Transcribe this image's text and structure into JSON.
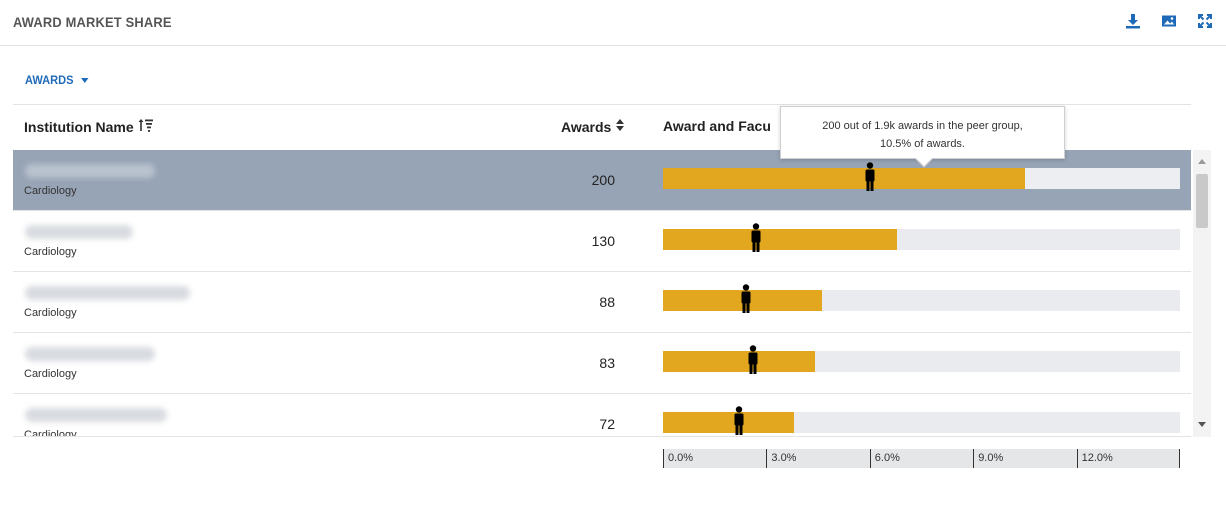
{
  "header": {
    "title": "AWARD MARKET SHARE",
    "icons": [
      "download-icon",
      "image-icon",
      "expand-icon"
    ]
  },
  "selector": {
    "label": "AWARDS"
  },
  "columns": {
    "institution": "Institution Name",
    "awards": "Awards",
    "bar": "Award and Facu"
  },
  "tooltip": {
    "line1": "200 out of 1.9k awards in the peer group,",
    "line2": "10.5% of awards."
  },
  "rows": [
    {
      "specialty": "Cardiology",
      "awards": "200",
      "award_share_pct": 10.5,
      "faculty_marker_pct": 6.0,
      "selected": true
    },
    {
      "specialty": "Cardiology",
      "awards": "130",
      "award_share_pct": 6.8,
      "faculty_marker_pct": 2.7
    },
    {
      "specialty": "Cardiology",
      "awards": "88",
      "award_share_pct": 4.6,
      "faculty_marker_pct": 2.4
    },
    {
      "specialty": "Cardiology",
      "awards": "83",
      "award_share_pct": 4.4,
      "faculty_marker_pct": 2.6
    },
    {
      "specialty": "Cardiology",
      "awards": "72",
      "award_share_pct": 3.8,
      "faculty_marker_pct": 2.2
    }
  ],
  "axis": {
    "max_pct": 15,
    "ticks": [
      {
        "value": 0,
        "label": "0.0%"
      },
      {
        "value": 3,
        "label": "3.0%"
      },
      {
        "value": 6,
        "label": "6.0%"
      },
      {
        "value": 9,
        "label": "9.0%"
      },
      {
        "value": 12,
        "label": "12.0%"
      }
    ]
  },
  "colors": {
    "accent": "#1f6ab8",
    "bar_fill": "#e2a61f",
    "bar_track": "#e9ebee",
    "selected_row": "#97a4b5"
  }
}
